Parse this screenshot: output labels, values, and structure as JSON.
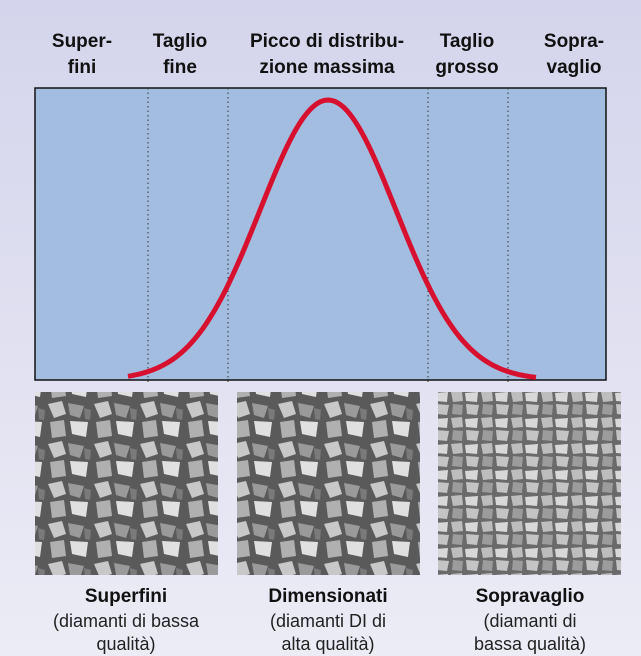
{
  "header": {
    "columns": [
      [
        "Super-",
        "fini"
      ],
      [
        "Taglio",
        "fine"
      ],
      [
        "Picco di distribu-",
        "zione massima"
      ],
      [
        "Taglio",
        "grosso"
      ],
      [
        "Sopra-",
        "vaglio"
      ]
    ]
  },
  "panels": [
    {
      "title": "Superfini",
      "lines": [
        "(diamanti di bassa",
        "qualità)"
      ]
    },
    {
      "title": "Dimensionati",
      "lines": [
        "(diamanti DI di",
        "alta qualità)"
      ]
    },
    {
      "title": "Sopravaglio",
      "lines": [
        "(diamanti di",
        "bassa qualità)"
      ]
    }
  ]
}
